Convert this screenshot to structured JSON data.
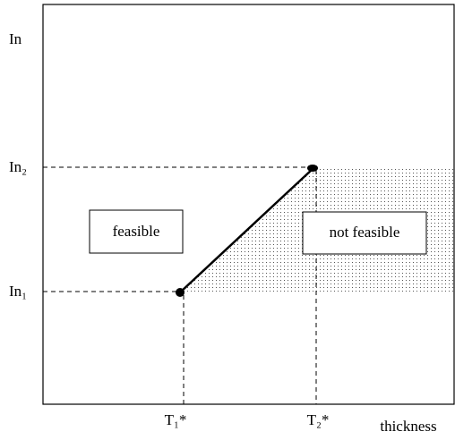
{
  "y_axis": {
    "label": "In",
    "ticks": [
      "In₂",
      "In₁"
    ]
  },
  "x_axis": {
    "label": "thickness",
    "ticks": [
      "T₁*",
      "T₂*"
    ]
  },
  "regions": {
    "left": "feasible",
    "right": "not feasible"
  }
}
